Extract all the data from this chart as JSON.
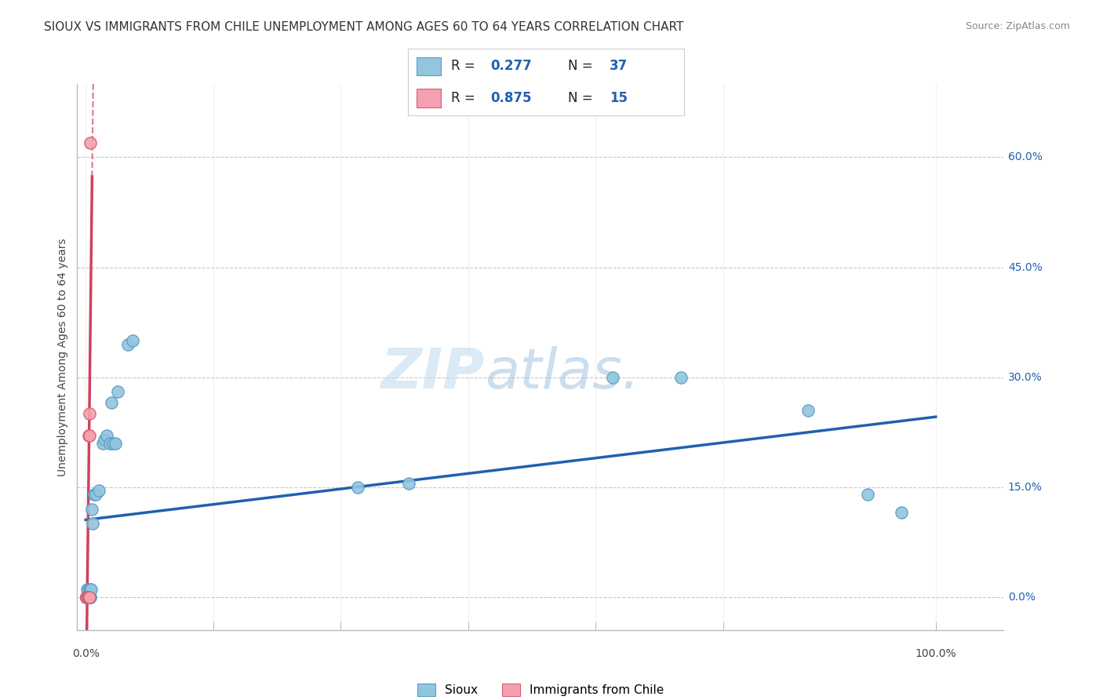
{
  "title": "SIOUX VS IMMIGRANTS FROM CHILE UNEMPLOYMENT AMONG AGES 60 TO 64 YEARS CORRELATION CHART",
  "source": "Source: ZipAtlas.com",
  "ylabel": "Unemployment Among Ages 60 to 64 years",
  "ylabel_ticks": [
    "0.0%",
    "15.0%",
    "30.0%",
    "45.0%",
    "60.0%"
  ],
  "ylabel_vals": [
    0.0,
    0.15,
    0.3,
    0.45,
    0.6
  ],
  "xlabel_ticks": [
    "0.0%",
    "100.0%"
  ],
  "xlabel_vals": [
    0.0,
    1.0
  ],
  "xlim": [
    -0.01,
    1.08
  ],
  "ylim": [
    -0.045,
    0.7
  ],
  "sioux_x": [
    0.001,
    0.001,
    0.001,
    0.002,
    0.002,
    0.002,
    0.003,
    0.003,
    0.003,
    0.004,
    0.004,
    0.005,
    0.005,
    0.005,
    0.006,
    0.007,
    0.008,
    0.01,
    0.012,
    0.015,
    0.02,
    0.022,
    0.025,
    0.028,
    0.03,
    0.032,
    0.035,
    0.038,
    0.05,
    0.055,
    0.32,
    0.38,
    0.62,
    0.7,
    0.85,
    0.92,
    0.96
  ],
  "sioux_y": [
    0.0,
    0.0,
    0.0,
    0.0,
    0.0,
    0.01,
    0.0,
    0.0,
    0.01,
    0.0,
    0.01,
    0.0,
    0.0,
    0.01,
    0.01,
    0.12,
    0.1,
    0.14,
    0.14,
    0.145,
    0.21,
    0.215,
    0.22,
    0.21,
    0.265,
    0.21,
    0.21,
    0.28,
    0.345,
    0.35,
    0.15,
    0.155,
    0.3,
    0.3,
    0.255,
    0.14,
    0.115
  ],
  "chile_x": [
    0.001,
    0.001,
    0.001,
    0.002,
    0.002,
    0.002,
    0.002,
    0.003,
    0.003,
    0.003,
    0.003,
    0.004,
    0.004,
    0.004,
    0.005
  ],
  "chile_y": [
    0.0,
    0.0,
    0.0,
    0.0,
    0.0,
    0.0,
    0.0,
    0.0,
    0.0,
    0.0,
    0.22,
    0.0,
    0.22,
    0.25,
    0.62
  ],
  "sioux_color": "#92c5de",
  "chile_color": "#f4a0b0",
  "sioux_edge": "#5a9ec6",
  "chile_edge": "#d06070",
  "sioux_line_color": "#2060b0",
  "chile_line_color": "#d04060",
  "R_sioux": 0.277,
  "N_sioux": 37,
  "R_chile": 0.875,
  "N_chile": 15,
  "watermark_zip": "ZIP",
  "watermark_atlas": "atlas.",
  "background_color": "#ffffff",
  "grid_color": "#c8c8c8",
  "spine_color": "#bbbbbb"
}
